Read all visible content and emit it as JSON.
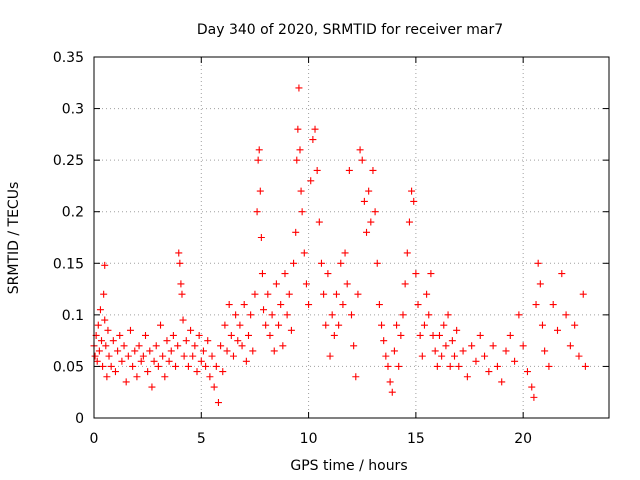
{
  "chart_data": {
    "type": "scatter",
    "title": "Day 340 of 2020, SRMTID for receiver mar7",
    "xlabel": "GPS time / hours",
    "ylabel": "SRMTID / TECUs",
    "xlim": [
      0,
      24
    ],
    "ylim": [
      0,
      0.35
    ],
    "x_ticks": [
      0,
      5,
      10,
      15,
      20
    ],
    "y_ticks": [
      0,
      0.05,
      0.1,
      0.15,
      0.2,
      0.25,
      0.3,
      0.35
    ],
    "x_tick_labels": [
      "0",
      "5",
      "10",
      "15",
      "20"
    ],
    "y_tick_labels": [
      "0",
      "0.05",
      "0.1",
      "0.15",
      "0.2",
      "0.25",
      "0.3",
      "0.35"
    ],
    "marker": "+",
    "grid": true,
    "series": [
      {
        "name": "SRMTID",
        "color": "#ff0000",
        "points": [
          [
            0.0,
            0.07
          ],
          [
            0.05,
            0.06
          ],
          [
            0.1,
            0.08
          ],
          [
            0.15,
            0.055
          ],
          [
            0.2,
            0.09
          ],
          [
            0.25,
            0.065
          ],
          [
            0.3,
            0.105
          ],
          [
            0.35,
            0.075
          ],
          [
            0.4,
            0.05
          ],
          [
            0.45,
            0.12
          ],
          [
            0.5,
            0.148
          ],
          [
            0.5,
            0.095
          ],
          [
            0.55,
            0.07
          ],
          [
            0.6,
            0.04
          ],
          [
            0.65,
            0.085
          ],
          [
            0.7,
            0.06
          ],
          [
            0.8,
            0.05
          ],
          [
            0.9,
            0.075
          ],
          [
            1.0,
            0.045
          ],
          [
            1.1,
            0.065
          ],
          [
            1.2,
            0.08
          ],
          [
            1.3,
            0.055
          ],
          [
            1.4,
            0.07
          ],
          [
            1.5,
            0.035
          ],
          [
            1.6,
            0.06
          ],
          [
            1.7,
            0.085
          ],
          [
            1.8,
            0.05
          ],
          [
            1.9,
            0.065
          ],
          [
            2.0,
            0.04
          ],
          [
            2.1,
            0.07
          ],
          [
            2.2,
            0.055
          ],
          [
            2.3,
            0.06
          ],
          [
            2.4,
            0.08
          ],
          [
            2.5,
            0.045
          ],
          [
            2.6,
            0.065
          ],
          [
            2.7,
            0.03
          ],
          [
            2.8,
            0.055
          ],
          [
            2.9,
            0.07
          ],
          [
            3.0,
            0.05
          ],
          [
            3.1,
            0.09
          ],
          [
            3.2,
            0.06
          ],
          [
            3.3,
            0.04
          ],
          [
            3.4,
            0.075
          ],
          [
            3.5,
            0.055
          ],
          [
            3.6,
            0.065
          ],
          [
            3.7,
            0.08
          ],
          [
            3.8,
            0.05
          ],
          [
            3.9,
            0.07
          ],
          [
            3.95,
            0.16
          ],
          [
            4.0,
            0.15
          ],
          [
            4.05,
            0.13
          ],
          [
            4.1,
            0.12
          ],
          [
            4.15,
            0.095
          ],
          [
            4.2,
            0.06
          ],
          [
            4.3,
            0.075
          ],
          [
            4.4,
            0.05
          ],
          [
            4.5,
            0.085
          ],
          [
            4.6,
            0.06
          ],
          [
            4.7,
            0.07
          ],
          [
            4.8,
            0.045
          ],
          [
            4.9,
            0.08
          ],
          [
            5.0,
            0.055
          ],
          [
            5.1,
            0.065
          ],
          [
            5.2,
            0.05
          ],
          [
            5.3,
            0.075
          ],
          [
            5.4,
            0.04
          ],
          [
            5.5,
            0.06
          ],
          [
            5.6,
            0.03
          ],
          [
            5.7,
            0.05
          ],
          [
            5.8,
            0.015
          ],
          [
            5.9,
            0.07
          ],
          [
            6.0,
            0.045
          ],
          [
            6.1,
            0.09
          ],
          [
            6.2,
            0.065
          ],
          [
            6.3,
            0.11
          ],
          [
            6.4,
            0.08
          ],
          [
            6.5,
            0.06
          ],
          [
            6.6,
            0.1
          ],
          [
            6.7,
            0.075
          ],
          [
            6.8,
            0.09
          ],
          [
            6.9,
            0.07
          ],
          [
            7.0,
            0.11
          ],
          [
            7.1,
            0.055
          ],
          [
            7.2,
            0.08
          ],
          [
            7.3,
            0.1
          ],
          [
            7.4,
            0.065
          ],
          [
            7.5,
            0.12
          ],
          [
            7.6,
            0.2
          ],
          [
            7.65,
            0.25
          ],
          [
            7.7,
            0.26
          ],
          [
            7.75,
            0.22
          ],
          [
            7.8,
            0.175
          ],
          [
            7.85,
            0.14
          ],
          [
            7.9,
            0.105
          ],
          [
            8.0,
            0.09
          ],
          [
            8.1,
            0.12
          ],
          [
            8.2,
            0.08
          ],
          [
            8.3,
            0.1
          ],
          [
            8.4,
            0.065
          ],
          [
            8.5,
            0.13
          ],
          [
            8.6,
            0.09
          ],
          [
            8.7,
            0.11
          ],
          [
            8.8,
            0.07
          ],
          [
            8.9,
            0.14
          ],
          [
            9.0,
            0.1
          ],
          [
            9.1,
            0.12
          ],
          [
            9.2,
            0.085
          ],
          [
            9.3,
            0.15
          ],
          [
            9.4,
            0.18
          ],
          [
            9.45,
            0.25
          ],
          [
            9.5,
            0.28
          ],
          [
            9.55,
            0.32
          ],
          [
            9.6,
            0.26
          ],
          [
            9.65,
            0.22
          ],
          [
            9.7,
            0.2
          ],
          [
            9.8,
            0.16
          ],
          [
            9.9,
            0.13
          ],
          [
            10.0,
            0.11
          ],
          [
            10.1,
            0.23
          ],
          [
            10.2,
            0.27
          ],
          [
            10.3,
            0.28
          ],
          [
            10.4,
            0.24
          ],
          [
            10.5,
            0.19
          ],
          [
            10.6,
            0.15
          ],
          [
            10.7,
            0.12
          ],
          [
            10.8,
            0.09
          ],
          [
            10.9,
            0.14
          ],
          [
            11.0,
            0.06
          ],
          [
            11.1,
            0.1
          ],
          [
            11.2,
            0.08
          ],
          [
            11.3,
            0.12
          ],
          [
            11.4,
            0.09
          ],
          [
            11.5,
            0.15
          ],
          [
            11.6,
            0.11
          ],
          [
            11.7,
            0.16
          ],
          [
            11.8,
            0.13
          ],
          [
            11.9,
            0.24
          ],
          [
            12.0,
            0.1
          ],
          [
            12.1,
            0.07
          ],
          [
            12.2,
            0.04
          ],
          [
            12.3,
            0.12
          ],
          [
            12.4,
            0.26
          ],
          [
            12.5,
            0.25
          ],
          [
            12.6,
            0.21
          ],
          [
            12.7,
            0.18
          ],
          [
            12.8,
            0.22
          ],
          [
            12.9,
            0.19
          ],
          [
            13.0,
            0.24
          ],
          [
            13.1,
            0.2
          ],
          [
            13.2,
            0.15
          ],
          [
            13.3,
            0.11
          ],
          [
            13.4,
            0.09
          ],
          [
            13.5,
            0.075
          ],
          [
            13.6,
            0.06
          ],
          [
            13.7,
            0.05
          ],
          [
            13.8,
            0.035
          ],
          [
            13.9,
            0.025
          ],
          [
            14.0,
            0.065
          ],
          [
            14.1,
            0.09
          ],
          [
            14.2,
            0.05
          ],
          [
            14.3,
            0.08
          ],
          [
            14.4,
            0.1
          ],
          [
            14.5,
            0.13
          ],
          [
            14.6,
            0.16
          ],
          [
            14.7,
            0.19
          ],
          [
            14.8,
            0.22
          ],
          [
            14.9,
            0.21
          ],
          [
            15.0,
            0.14
          ],
          [
            15.1,
            0.11
          ],
          [
            15.2,
            0.08
          ],
          [
            15.3,
            0.06
          ],
          [
            15.4,
            0.09
          ],
          [
            15.5,
            0.12
          ],
          [
            15.6,
            0.1
          ],
          [
            15.7,
            0.14
          ],
          [
            15.8,
            0.08
          ],
          [
            15.9,
            0.065
          ],
          [
            16.0,
            0.05
          ],
          [
            16.1,
            0.08
          ],
          [
            16.2,
            0.06
          ],
          [
            16.3,
            0.09
          ],
          [
            16.4,
            0.07
          ],
          [
            16.5,
            0.1
          ],
          [
            16.6,
            0.05
          ],
          [
            16.7,
            0.075
          ],
          [
            16.8,
            0.06
          ],
          [
            16.9,
            0.085
          ],
          [
            17.0,
            0.05
          ],
          [
            17.2,
            0.065
          ],
          [
            17.4,
            0.04
          ],
          [
            17.6,
            0.07
          ],
          [
            17.8,
            0.055
          ],
          [
            18.0,
            0.08
          ],
          [
            18.2,
            0.06
          ],
          [
            18.4,
            0.045
          ],
          [
            18.6,
            0.07
          ],
          [
            18.8,
            0.05
          ],
          [
            19.0,
            0.035
          ],
          [
            19.2,
            0.065
          ],
          [
            19.4,
            0.08
          ],
          [
            19.6,
            0.055
          ],
          [
            19.8,
            0.1
          ],
          [
            20.0,
            0.07
          ],
          [
            20.2,
            0.045
          ],
          [
            20.4,
            0.03
          ],
          [
            20.5,
            0.02
          ],
          [
            20.6,
            0.11
          ],
          [
            20.7,
            0.15
          ],
          [
            20.8,
            0.13
          ],
          [
            20.9,
            0.09
          ],
          [
            21.0,
            0.065
          ],
          [
            21.2,
            0.05
          ],
          [
            21.4,
            0.11
          ],
          [
            21.6,
            0.085
          ],
          [
            21.8,
            0.14
          ],
          [
            22.0,
            0.1
          ],
          [
            22.2,
            0.07
          ],
          [
            22.4,
            0.09
          ],
          [
            22.6,
            0.06
          ],
          [
            22.8,
            0.12
          ],
          [
            22.9,
            0.05
          ]
        ]
      }
    ]
  }
}
